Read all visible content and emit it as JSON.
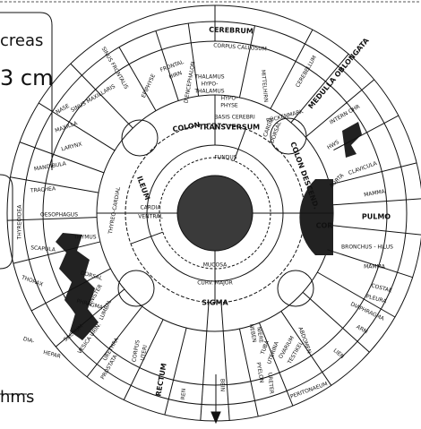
{
  "side_notes": [
    "creas",
    "3 cm",
    "hms"
  ],
  "labels": [
    "CEREBRUM",
    "CORPUS CALLOSUM",
    "FRONTAL",
    "HIRN",
    "THALAMUS",
    "HYPO-",
    "THALAMUS",
    "DIENCEPHALON",
    "EPIPHYSE",
    "HYPO-",
    "PHYSE",
    "MITTELHIRN",
    "BASIS CEREBRI",
    "CEREBELLUM",
    "MEDULLA OBLONGATA",
    "RÜCKENMARK",
    "INTERN OHR",
    "HWS",
    "CLAVICULA",
    "MAMMA",
    "AORTA",
    "PULMO",
    "COR",
    "BRONCHUS - HILUS",
    "MAMMA",
    "COSTAE",
    "PLEURA",
    "DIAPHRAGMA",
    "ARM",
    "LIEN",
    "PERITONAEUM",
    "ABDOMEN",
    "OVARIUM",
    "TESTIKEL",
    "TUBA",
    "UTERINA",
    "NEBEN",
    "NIERE",
    "PYELON",
    "URETER",
    "BEIN",
    "REN",
    "RECTUM",
    "CORPUS",
    "UTERI",
    "PROSTATA",
    "URETHRA",
    "VESICA URIN.",
    "SACRUM",
    "LUMBAL",
    "DIA-",
    "HEPAR",
    "SINISTER",
    "PHRAGMA",
    "THORAX",
    "DORSAL",
    "SCAPULA",
    "THYMUS",
    "OESOPHAGUS",
    "THYREOIDEA",
    "TRACHEA",
    "MANDIBULA",
    "LARYNX",
    "MAXILLA",
    "NASE",
    "SINUS MAXILLARIS",
    "SINUS FRONTALIS",
    "COLON",
    "TRANSVERSUM",
    "FUNDUS",
    "CARDIA",
    "DORSAL",
    "COLON DESCEND.",
    "ILEUM",
    "CARDIA",
    "VENTRAL",
    "MUCOSA",
    "CURV. MAJOR",
    "SIGMA",
    "THYREO-CARDIAL"
  ]
}
